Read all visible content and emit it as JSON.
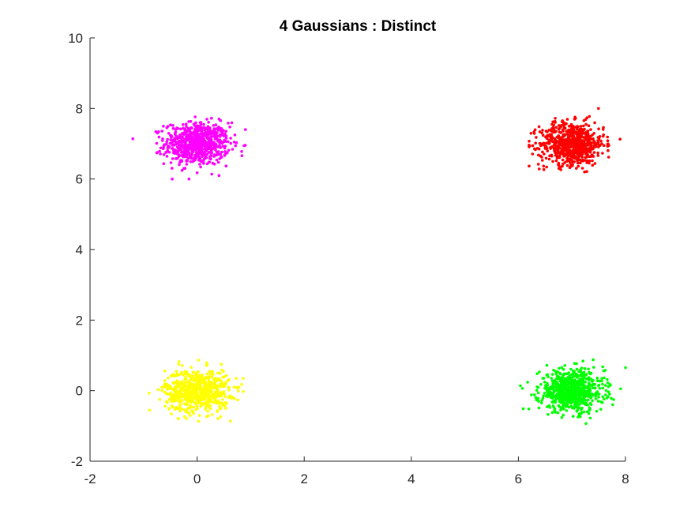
{
  "chart_data": {
    "type": "scatter",
    "title": "4 Gaussians : Distinct",
    "xlabel": "",
    "ylabel": "",
    "xlim": [
      -2,
      8
    ],
    "ylim": [
      -2,
      10
    ],
    "xticks": [
      "-2",
      "0",
      "2",
      "4",
      "6",
      "8"
    ],
    "yticks": [
      "-2",
      "0",
      "2",
      "4",
      "6",
      "8",
      "10"
    ],
    "grid": false,
    "series": [
      {
        "color": "#ff00ff",
        "center": [
          0,
          7
        ],
        "std": [
          0.3,
          0.3
        ],
        "count": 700,
        "x_range": [
          -1.2,
          1.0
        ],
        "y_range": [
          6.0,
          8.15
        ]
      },
      {
        "color": "#ff0000",
        "center": [
          7,
          7
        ],
        "std": [
          0.3,
          0.3
        ],
        "count": 700,
        "x_range": [
          6.2,
          7.9
        ],
        "y_range": [
          5.8,
          8.0
        ]
      },
      {
        "color": "#ffff00",
        "center": [
          0,
          0
        ],
        "std": [
          0.3,
          0.3
        ],
        "count": 700,
        "x_range": [
          -1.15,
          1.0
        ],
        "y_range": [
          -0.95,
          1.15
        ]
      },
      {
        "color": "#00ff00",
        "center": [
          7,
          0
        ],
        "std": [
          0.3,
          0.3
        ],
        "count": 700,
        "x_range": [
          6.0,
          8.0
        ],
        "y_range": [
          -1.1,
          1.0
        ]
      }
    ]
  }
}
